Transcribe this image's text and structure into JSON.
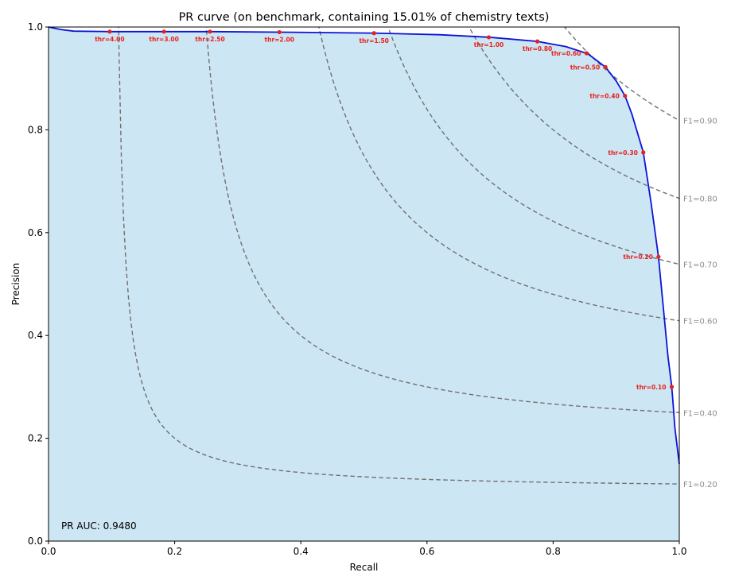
{
  "chart_data": {
    "type": "line",
    "title": "PR curve (on benchmark, containing 15.01% of chemistry texts)",
    "xlabel": "Recall",
    "ylabel": "Precision",
    "xlim": [
      0.0,
      1.0
    ],
    "ylim": [
      0.0,
      1.0
    ],
    "xticks": [
      0.0,
      0.2,
      0.4,
      0.6,
      0.8,
      1.0
    ],
    "yticks": [
      0.0,
      0.2,
      0.4,
      0.6,
      0.8,
      1.0
    ],
    "xtick_labels": [
      "0.0",
      "0.2",
      "0.4",
      "0.6",
      "0.8",
      "1.0"
    ],
    "ytick_labels": [
      "0.0",
      "0.2",
      "0.4",
      "0.6",
      "0.8",
      "1.0"
    ],
    "grid": false,
    "fill_under_curve": true,
    "colors": {
      "curve": "#0a14d6",
      "fill": "#cde6f4",
      "f1_lines": "#707070",
      "f1_labels": "#8c8c8c",
      "threshold_markers": "#e8201c"
    },
    "annotation": "PR AUC: 0.9480",
    "curve": {
      "recall": [
        0.0,
        0.02,
        0.04,
        0.1,
        0.18,
        0.26,
        0.37,
        0.52,
        0.62,
        0.7,
        0.775,
        0.82,
        0.855,
        0.883,
        0.9,
        0.914,
        0.925,
        0.943,
        0.955,
        0.967,
        0.975,
        0.982,
        0.988,
        0.99,
        0.993,
        0.997,
        1.0
      ],
      "precision": [
        1.0,
        0.995,
        0.992,
        0.991,
        0.991,
        0.991,
        0.99,
        0.988,
        0.985,
        0.98,
        0.972,
        0.962,
        0.948,
        0.922,
        0.895,
        0.866,
        0.83,
        0.756,
        0.66,
        0.553,
        0.45,
        0.36,
        0.3,
        0.27,
        0.22,
        0.18,
        0.15
      ]
    },
    "thresholds": [
      {
        "label": "thr=4.00",
        "recall": 0.097,
        "precision": 0.991
      },
      {
        "label": "thr=3.00",
        "recall": 0.183,
        "precision": 0.991
      },
      {
        "label": "thr=2.50",
        "recall": 0.256,
        "precision": 0.991
      },
      {
        "label": "thr=2.00",
        "recall": 0.366,
        "precision": 0.99
      },
      {
        "label": "thr=1.50",
        "recall": 0.516,
        "precision": 0.988
      },
      {
        "label": "thr=1.00",
        "recall": 0.698,
        "precision": 0.98
      },
      {
        "label": "thr=0.80",
        "recall": 0.775,
        "precision": 0.972
      },
      {
        "label": "thr=0.60",
        "recall": 0.853,
        "precision": 0.949
      },
      {
        "label": "thr=0.50",
        "recall": 0.883,
        "precision": 0.922
      },
      {
        "label": "thr=0.40",
        "recall": 0.914,
        "precision": 0.866
      },
      {
        "label": "thr=0.30",
        "recall": 0.943,
        "precision": 0.756
      },
      {
        "label": "thr=0.20",
        "recall": 0.967,
        "precision": 0.553
      },
      {
        "label": "thr=0.10",
        "recall": 0.988,
        "precision": 0.3
      }
    ],
    "f1_isolines": [
      {
        "f1": 0.2,
        "label": "F1=0.20"
      },
      {
        "f1": 0.4,
        "label": "F1=0.40"
      },
      {
        "f1": 0.6,
        "label": "F1=0.60"
      },
      {
        "f1": 0.7,
        "label": "F1=0.70"
      },
      {
        "f1": 0.8,
        "label": "F1=0.80"
      },
      {
        "f1": 0.9,
        "label": "F1=0.90"
      }
    ]
  }
}
